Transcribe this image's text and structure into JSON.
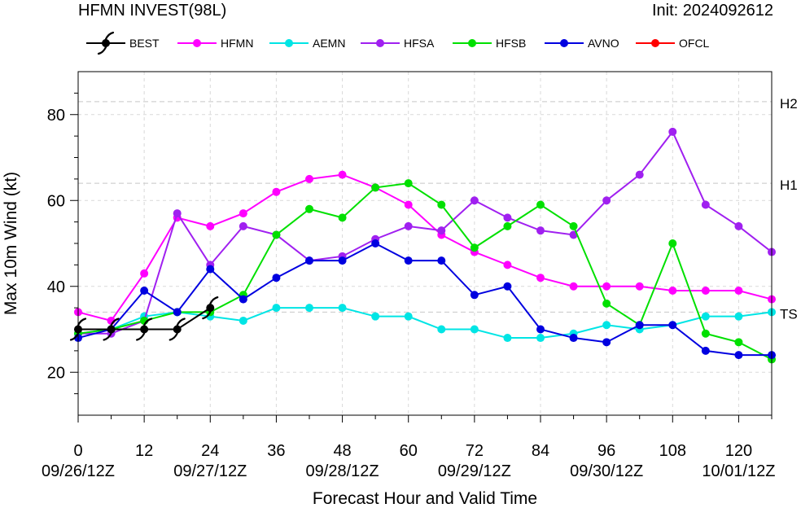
{
  "chart_data": {
    "type": "line",
    "title": "HFMN INVEST(98L)",
    "subtitle": "Init: 2024092612",
    "xlabel": "Forecast Hour and Valid Time",
    "ylabel": "Max 10m Wind (kt)",
    "xlim": [
      0,
      126
    ],
    "ylim": [
      10,
      90
    ],
    "x_ticks": [
      {
        "hour": "0",
        "date": "09/26/12Z"
      },
      {
        "hour": "12",
        "date": ""
      },
      {
        "hour": "24",
        "date": "09/27/12Z"
      },
      {
        "hour": "36",
        "date": ""
      },
      {
        "hour": "48",
        "date": "09/28/12Z"
      },
      {
        "hour": "60",
        "date": ""
      },
      {
        "hour": "72",
        "date": "09/29/12Z"
      },
      {
        "hour": "84",
        "date": ""
      },
      {
        "hour": "96",
        "date": "09/30/12Z"
      },
      {
        "hour": "108",
        "date": ""
      },
      {
        "hour": "120",
        "date": "10/01/12Z"
      }
    ],
    "y_ticks": [
      20,
      40,
      60,
      80
    ],
    "thresholds": [
      {
        "label": "TS",
        "value": 34
      },
      {
        "label": "H1",
        "value": 64
      },
      {
        "label": "H2",
        "value": 83
      }
    ],
    "grid": true,
    "legend_position": "top",
    "series": [
      {
        "name": "BEST",
        "color": "#000000",
        "marker": "hurricane-symbol",
        "x": [
          0,
          6,
          12,
          18,
          24
        ],
        "y": [
          30,
          30,
          30,
          30,
          35
        ]
      },
      {
        "name": "HFMN",
        "color": "#ff00ff",
        "marker": "circle",
        "x": [
          0,
          6,
          12,
          18,
          24,
          30,
          36,
          42,
          48,
          54,
          60,
          66,
          72,
          78,
          84,
          90,
          96,
          102,
          108,
          114,
          120,
          126
        ],
        "y": [
          34,
          32,
          43,
          56,
          54,
          57,
          62,
          65,
          66,
          63,
          59,
          52,
          48,
          45,
          42,
          40,
          40,
          40,
          39,
          39,
          39,
          37
        ]
      },
      {
        "name": "AEMN",
        "color": "#00e5e5",
        "marker": "circle",
        "x": [
          0,
          6,
          12,
          18,
          24,
          30,
          36,
          42,
          48,
          54,
          60,
          66,
          72,
          78,
          84,
          90,
          96,
          102,
          108,
          114,
          120,
          126
        ],
        "y": [
          29,
          30,
          33,
          34,
          33,
          32,
          35,
          35,
          35,
          33,
          33,
          30,
          30,
          28,
          28,
          29,
          31,
          30,
          31,
          33,
          33,
          34
        ]
      },
      {
        "name": "HFSA",
        "color": "#a020f0",
        "marker": "circle",
        "x": [
          0,
          6,
          12,
          18,
          24,
          30,
          36,
          42,
          48,
          54,
          60,
          66,
          72,
          78,
          84,
          90,
          96,
          102,
          108,
          114,
          120,
          126
        ],
        "y": [
          29,
          29,
          32,
          57,
          45,
          54,
          52,
          46,
          47,
          51,
          54,
          53,
          60,
          56,
          53,
          52,
          60,
          66,
          76,
          59,
          54,
          48
        ]
      },
      {
        "name": "HFSB",
        "color": "#00e000",
        "marker": "circle",
        "x": [
          0,
          6,
          12,
          18,
          24,
          30,
          36,
          42,
          48,
          54,
          60,
          66,
          72,
          78,
          84,
          90,
          96,
          102,
          108,
          114,
          120,
          126
        ],
        "y": [
          29,
          30,
          32,
          34,
          34,
          38,
          52,
          58,
          56,
          63,
          64,
          59,
          49,
          54,
          59,
          54,
          36,
          31,
          50,
          29,
          27,
          23
        ]
      },
      {
        "name": "AVNO",
        "color": "#0000e0",
        "marker": "circle",
        "x": [
          0,
          6,
          12,
          18,
          24,
          30,
          36,
          42,
          48,
          54,
          60,
          66,
          72,
          78,
          84,
          90,
          96,
          102,
          108,
          114,
          120,
          126
        ],
        "y": [
          28,
          30,
          39,
          34,
          44,
          37,
          42,
          46,
          46,
          50,
          46,
          46,
          38,
          40,
          30,
          28,
          27,
          31,
          31,
          25,
          24,
          24
        ]
      },
      {
        "name": "OFCL",
        "color": "#ff0000",
        "marker": "circle",
        "x": [],
        "y": []
      }
    ]
  }
}
